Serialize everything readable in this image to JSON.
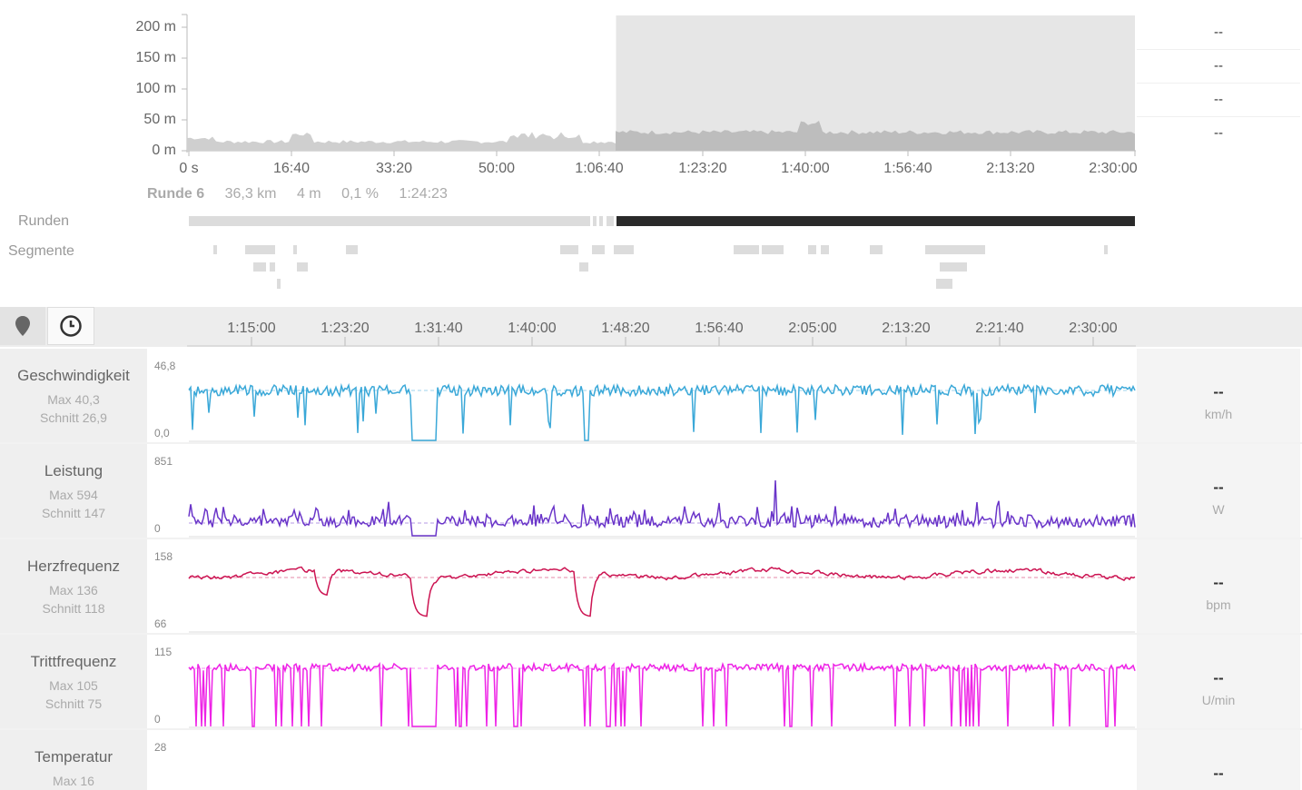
{
  "overview": {
    "y_ticks": [
      "200 m",
      "150 m",
      "100 m",
      "50 m",
      "0 m"
    ],
    "x_ticks": [
      "0 s",
      "16:40",
      "33:20",
      "50:00",
      "1:06:40",
      "1:23:20",
      "1:40:00",
      "1:56:40",
      "2:13:20",
      "2:30:00"
    ],
    "right_values": [
      "--",
      "--",
      "--",
      "--"
    ]
  },
  "lap_summary": {
    "name": "Runde 6",
    "distance": "36,3 km",
    "elevation": "4 m",
    "grade": "0,1 %",
    "duration": "1:24:23"
  },
  "rows": {
    "laps_label": "Runden",
    "segments_label": "Segmente"
  },
  "toolbar": {
    "location_icon": "map-pin-icon",
    "time_icon": "clock-icon"
  },
  "timeline": {
    "ticks": [
      "1:15:00",
      "1:23:20",
      "1:31:40",
      "1:40:00",
      "1:48:20",
      "1:56:40",
      "2:05:00",
      "2:13:20",
      "2:21:40",
      "2:30:00"
    ]
  },
  "metrics": [
    {
      "name": "Geschwindigkeit",
      "max": "Max 40,3",
      "avg": "Schnitt 26,9",
      "axis_max": "46,8",
      "axis_min": "0,0",
      "value": "--",
      "unit": "km/h",
      "color": "#3aa8d8"
    },
    {
      "name": "Leistung",
      "max": "Max 594",
      "avg": "Schnitt 147",
      "axis_max": "851",
      "axis_min": "0",
      "value": "--",
      "unit": "W",
      "color": "#6a35c9"
    },
    {
      "name": "Herzfrequenz",
      "max": "Max 136",
      "avg": "Schnitt 118",
      "axis_max": "158",
      "axis_min": "66",
      "value": "--",
      "unit": "bpm",
      "color": "#cc1452"
    },
    {
      "name": "Trittfrequenz",
      "max": "Max 105",
      "avg": "Schnitt 75",
      "axis_max": "115",
      "axis_min": "0",
      "value": "--",
      "unit": "U/min",
      "color": "#ee22e6"
    },
    {
      "name": "Temperatur",
      "max": "Max 16",
      "avg": "",
      "axis_max": "28",
      "axis_min": "",
      "value": "--",
      "unit": "",
      "color": "#888888"
    }
  ]
}
